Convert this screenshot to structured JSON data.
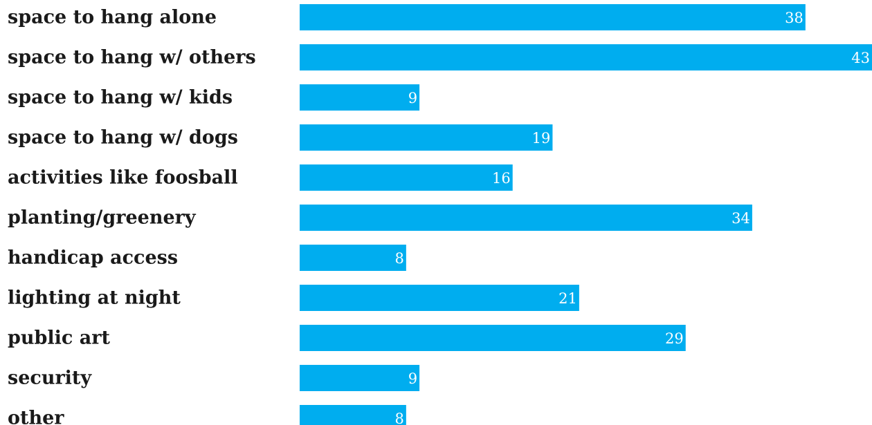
{
  "colors": {
    "bar": "#00adef",
    "label": "#1a1a1a",
    "value_label": "#ffffff",
    "background": "#ffffff"
  },
  "chart_data": {
    "type": "bar",
    "orientation": "horizontal",
    "title": "",
    "xlabel": "",
    "ylabel": "",
    "grid": false,
    "legend": "none",
    "xlim": [
      0,
      43
    ],
    "categories": [
      "space to hang alone",
      "space to hang w/ others",
      "space to hang w/ kids",
      "space to hang w/ dogs",
      "activities like foosball",
      "planting/greenery",
      "handicap access",
      "lighting at night",
      "public art",
      "security",
      "other"
    ],
    "values": [
      38,
      43,
      9,
      19,
      16,
      34,
      8,
      21,
      29,
      9,
      8
    ]
  }
}
